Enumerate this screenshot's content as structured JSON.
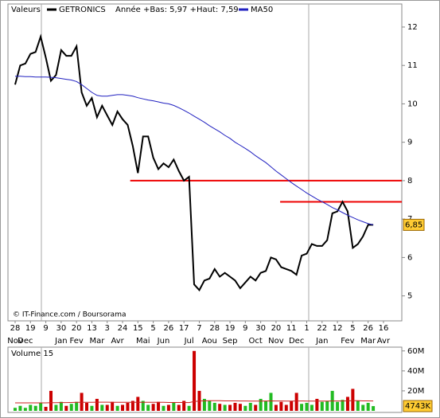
{
  "chart_data": [
    {
      "type": "line",
      "header": "Valeurs",
      "subtitle": "Année +Bas: 5,97 +Haut: 7,59",
      "annotation": "© IT-Finance.com / Boursorama",
      "categories": [
        "28",
        null,
        null,
        "19",
        null,
        null,
        "9",
        null,
        null,
        "30",
        null,
        null,
        "20",
        null,
        null,
        "13",
        null,
        null,
        "3",
        null,
        null,
        "24",
        null,
        null,
        "15",
        null,
        null,
        "5",
        null,
        null,
        "26",
        null,
        null,
        "17",
        null,
        null,
        "7",
        null,
        null,
        "28",
        null,
        null,
        "19",
        null,
        null,
        "9",
        null,
        null,
        "30",
        null,
        null,
        "20",
        null,
        null,
        "11",
        null,
        null,
        "1",
        null,
        null,
        "22",
        null,
        null,
        "12",
        null,
        null,
        "5",
        null,
        null,
        "26",
        null,
        null,
        "16"
      ],
      "month_categories": [
        "Nov",
        null,
        "Dec",
        null,
        null,
        null,
        null,
        null,
        null,
        "Jan",
        null,
        null,
        "Fev",
        null,
        null,
        null,
        "Mar",
        null,
        null,
        null,
        "Avr",
        null,
        null,
        null,
        null,
        "Mai",
        null,
        null,
        null,
        "Jun",
        null,
        null,
        null,
        null,
        "Jul",
        null,
        null,
        null,
        "Aou",
        null,
        null,
        null,
        "Sep",
        null,
        null,
        null,
        null,
        "Oct",
        null,
        null,
        null,
        "Nov",
        null,
        null,
        null,
        "Dec",
        null,
        null,
        null,
        null,
        "Jan",
        null,
        null,
        null,
        null,
        "Fev",
        null,
        null,
        null,
        "Mar",
        null,
        null,
        "Avr"
      ],
      "series": [
        {
          "name": "GETRONICS",
          "color": "#000000",
          "values": [
            10.5,
            11.0,
            11.05,
            11.3,
            11.35,
            11.75,
            11.2,
            10.6,
            10.75,
            11.4,
            11.25,
            11.25,
            11.5,
            10.3,
            9.95,
            10.15,
            9.65,
            9.95,
            9.7,
            9.45,
            9.8,
            9.6,
            9.45,
            8.9,
            8.2,
            9.15,
            9.15,
            8.6,
            8.3,
            8.45,
            8.35,
            8.55,
            8.25,
            8.0,
            8.1,
            5.3,
            5.15,
            5.4,
            5.45,
            5.7,
            5.5,
            5.6,
            5.5,
            5.4,
            5.2,
            5.35,
            5.5,
            5.4,
            5.6,
            5.65,
            6.0,
            5.95,
            5.75,
            5.7,
            5.65,
            5.55,
            6.05,
            6.1,
            6.35,
            6.3,
            6.3,
            6.45,
            7.15,
            7.2,
            7.45,
            7.2,
            6.25,
            6.35,
            6.55,
            6.85,
            6.85,
            null,
            null
          ]
        },
        {
          "name": "MA50",
          "color": "#2020c0",
          "values": [
            10.72,
            10.72,
            10.71,
            10.71,
            10.7,
            10.7,
            10.7,
            10.69,
            10.68,
            10.66,
            10.64,
            10.62,
            10.58,
            10.5,
            10.4,
            10.3,
            10.22,
            10.2,
            10.2,
            10.22,
            10.24,
            10.24,
            10.22,
            10.2,
            10.16,
            10.13,
            10.1,
            10.08,
            10.05,
            10.02,
            10.0,
            9.96,
            9.9,
            9.83,
            9.76,
            9.68,
            9.6,
            9.52,
            9.43,
            9.35,
            9.27,
            9.18,
            9.1,
            9.0,
            8.92,
            8.84,
            8.75,
            8.65,
            8.56,
            8.47,
            8.36,
            8.25,
            8.15,
            8.05,
            7.95,
            7.86,
            7.77,
            7.68,
            7.6,
            7.52,
            7.45,
            7.38,
            7.3,
            7.24,
            7.17,
            7.1,
            7.04,
            6.98,
            6.93,
            6.88,
            6.85,
            null,
            null
          ]
        }
      ],
      "ylim": [
        4.35,
        12.6
      ],
      "yticks": [
        5,
        6,
        7,
        8,
        9,
        10,
        11,
        12
      ],
      "last_label": {
        "value": 6.85,
        "label": "6,85"
      },
      "horizontal_lines": [
        {
          "value": 8.0,
          "start": 22.5,
          "color": "#ee0000"
        },
        {
          "value": 7.45,
          "start": 51.8,
          "color": "#ee0000"
        }
      ]
    },
    {
      "type": "bar",
      "title": "Volume 15",
      "values": [
        3,
        5,
        3,
        6,
        5,
        8,
        4,
        20,
        6,
        9,
        5,
        7,
        9,
        18,
        8,
        5,
        12,
        6,
        6,
        9,
        5,
        6,
        8,
        10,
        14,
        10,
        6,
        7,
        9,
        5,
        6,
        8,
        6,
        10,
        5,
        60,
        20,
        12,
        10,
        8,
        7,
        6,
        6,
        8,
        7,
        5,
        8,
        6,
        12,
        10,
        18,
        6,
        9,
        6,
        10,
        18,
        7,
        8,
        6,
        12,
        9,
        10,
        20,
        9,
        11,
        14,
        22,
        10,
        6,
        8,
        4.743,
        null,
        null
      ],
      "ma_values": [
        8,
        8,
        8,
        8,
        8,
        8,
        8,
        8.2,
        8.2,
        8.3,
        8.3,
        8.4,
        8.5,
        8.6,
        8.6,
        8.6,
        8.7,
        8.7,
        8.7,
        8.6,
        8.6,
        8.5,
        8.5,
        8.5,
        8.6,
        8.6,
        8.6,
        8.5,
        8.5,
        8.5,
        8.4,
        8.4,
        8.4,
        8.4,
        8.3,
        9.4,
        9.8,
        10,
        10.1,
        10.1,
        10.1,
        10,
        10,
        10,
        9.9,
        9.9,
        9.8,
        9.8,
        9.8,
        9.9,
        10,
        9.9,
        9.9,
        9.8,
        9.8,
        9.9,
        9.9,
        9.8,
        9.8,
        9.8,
        9.8,
        9.8,
        9.9,
        9.9,
        9.9,
        10,
        10.1,
        10.1,
        10,
        10,
        9.9,
        null,
        null
      ],
      "ma_color": "#cc2020",
      "up_color": "#22bb22",
      "down_color": "#cc0000",
      "ylim": [
        0,
        63
      ],
      "yticks": [
        {
          "value": 20,
          "label": "20M"
        },
        {
          "value": 40,
          "label": "40M"
        },
        {
          "value": 60,
          "label": "60M"
        }
      ],
      "last_label": {
        "value": 4.743,
        "label": "4743K"
      }
    }
  ]
}
